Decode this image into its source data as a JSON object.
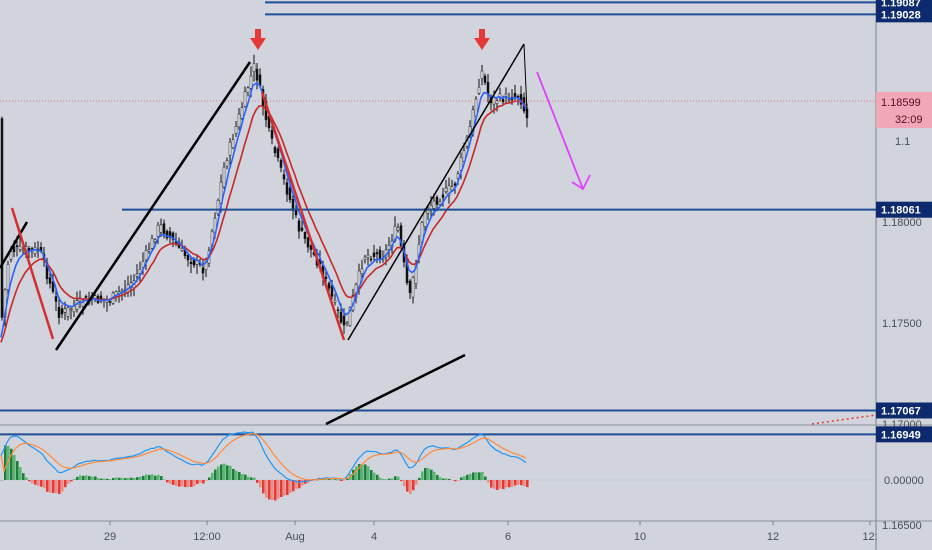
{
  "chart_data": [
    {
      "type": "candlestick",
      "x_ticks": [
        "29",
        "12:00",
        "Aug",
        "4",
        "4",
        "6",
        "10",
        "12",
        "12:"
      ],
      "y_ticks": [
        1.165,
        1.17,
        1.175,
        1.18,
        1.185
      ],
      "y_tick_labels": [
        "1.16500",
        "1.17000",
        "1.17500",
        "1.18000",
        "1.18500"
      ],
      "ylim": [
        1.1615,
        1.196
      ],
      "horizontal_levels": [
        {
          "value": 1.19087,
          "label": "1.19087"
        },
        {
          "value": 1.19028,
          "label": "1.19028"
        },
        {
          "value": 1.18061,
          "label": "1.18061"
        },
        {
          "value": 1.17067,
          "label": "1.17067"
        },
        {
          "value": 1.16949,
          "label": "1.16949"
        }
      ],
      "current_price": {
        "value": 1.18599,
        "label": "1.18599",
        "countdown": "32:09"
      },
      "partially_hidden_label": "1.1",
      "series": [
        {
          "role": "blue moving average",
          "color": "#2962ff"
        },
        {
          "role": "red moving average",
          "color": "#c62828"
        }
      ],
      "annotations": [
        "two red down arrows marking double top",
        "magenta arrow pointing down to 1.18061"
      ]
    },
    {
      "type": "macd",
      "y_ticks": [
        0.0
      ],
      "y_tick_labels": [
        "0.00000"
      ],
      "series": [
        {
          "role": "MACD line",
          "color": "#2196f3"
        },
        {
          "role": "signal line",
          "color": "#ff8a3c"
        },
        {
          "role": "histogram",
          "positive_color": "#26a65b",
          "negative_color": "#e53935"
        }
      ]
    }
  ],
  "colors": {
    "background": "#d1d4dc",
    "level_line": "#1f4e96",
    "level_tag": "#0d2a6e",
    "current_tag": "#f2a7b8",
    "trendline": "#000000",
    "arrow_red": "#e53935",
    "arrow_magenta": "#e040fb",
    "macd_blue": "#2196f3",
    "macd_orange": "#ff8a3c"
  }
}
